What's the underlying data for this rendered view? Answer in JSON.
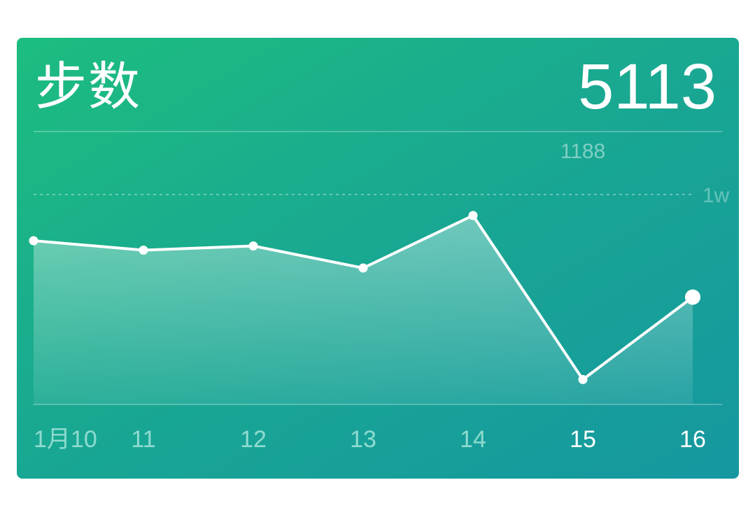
{
  "card": {
    "title": "步数",
    "value": "5113"
  },
  "chart_data": {
    "type": "area",
    "categories": [
      "1月10",
      "11",
      "12",
      "13",
      "14",
      "15",
      "16"
    ],
    "values": [
      7800,
      7350,
      7550,
      6500,
      9000,
      1188,
      5113
    ],
    "ylim": [
      0,
      13000
    ],
    "reference_line": {
      "value": 10000,
      "label": "1w"
    },
    "callout": {
      "index": 5,
      "label": "1188"
    },
    "highlight_labels": [
      5,
      6
    ],
    "grid": false
  },
  "colors": {
    "card_start": "#1dbd7f",
    "card_end": "#1597a0",
    "text": "#ffffff",
    "muted_text": "#8fdbd0"
  }
}
